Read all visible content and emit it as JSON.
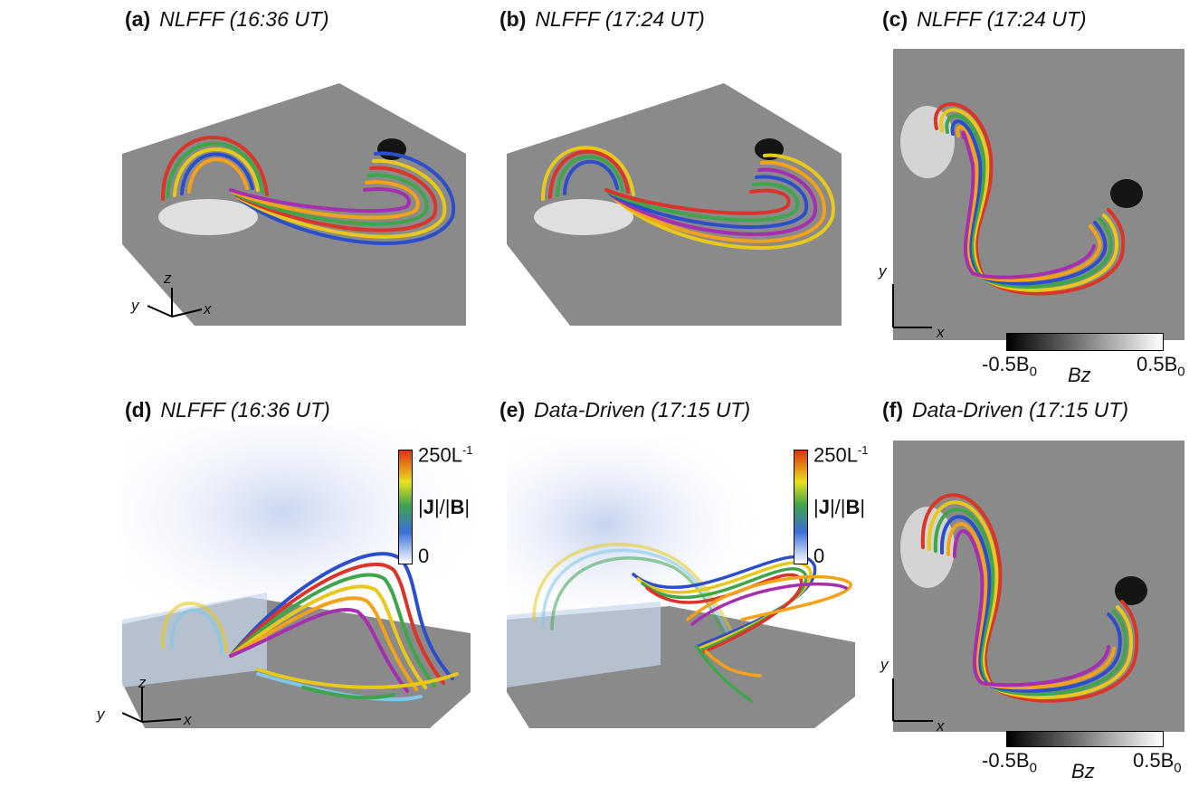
{
  "panels": {
    "a": {
      "letter": "(a)",
      "caption": "NLFFF (16:36 UT)"
    },
    "b": {
      "letter": "(b)",
      "caption": "NLFFF (17:24 UT)"
    },
    "c": {
      "letter": "(c)",
      "caption": "NLFFF (17:24 UT)"
    },
    "d": {
      "letter": "(d)",
      "caption": "NLFFF (16:36 UT)"
    },
    "e": {
      "letter": "(e)",
      "caption": "Data-Driven (17:15 UT)"
    },
    "f": {
      "letter": "(f)",
      "caption": "Data-Driven (17:15 UT)"
    }
  },
  "axes": {
    "x": "x",
    "y": "y",
    "z": "z"
  },
  "bz_colorbar": {
    "min_label": "-0.5B",
    "min_sub": "0",
    "max_label": "0.5B",
    "max_sub": "0",
    "quantity": "Bz"
  },
  "jb_colorbar": {
    "max_label": "250L",
    "max_sup": "-1",
    "min_label": "0",
    "quantity_j": "J",
    "quantity_b": "B"
  },
  "colors": {
    "magnetogram": "#8a8a8a",
    "field_lines": [
      "#e8c81c",
      "#f3a21a",
      "#d9352a",
      "#2c4fc9",
      "#3ea54a",
      "#a52fae",
      "#7fc6e8"
    ]
  }
}
